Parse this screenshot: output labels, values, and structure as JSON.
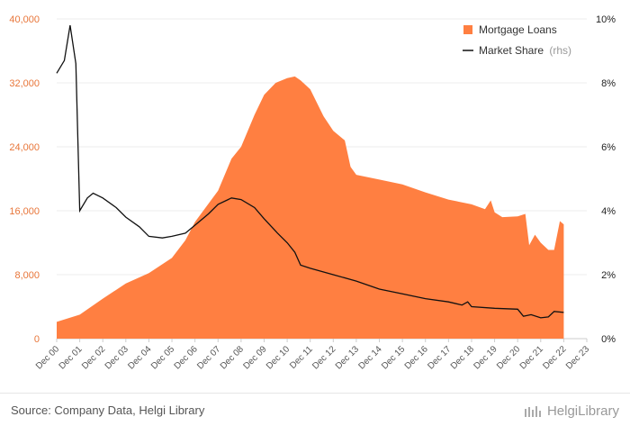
{
  "chart_data": {
    "type": "area",
    "title": "",
    "legend_position": "top-right",
    "x_tick_labels": [
      "Dec 00",
      "Dec 01",
      "Dec 02",
      "Dec 03",
      "Dec 04",
      "Dec 05",
      "Dec 06",
      "Dec 07",
      "Dec 08",
      "Dec 09",
      "Dec 10",
      "Dec 11",
      "Dec 12",
      "Dec 13",
      "Dec 14",
      "Dec 15",
      "Dec 16",
      "Dec 17",
      "Dec 18",
      "Dec 19",
      "Dec 20",
      "Dec 21",
      "Dec 22",
      "Dec 23"
    ],
    "y_left": {
      "ticks": [
        0,
        8000,
        16000,
        24000,
        32000,
        40000
      ],
      "tick_labels": [
        "0",
        "8,000",
        "16,000",
        "24,000",
        "32,000",
        "40,000"
      ],
      "range": [
        0,
        40000
      ]
    },
    "y_right": {
      "ticks": [
        0,
        2,
        4,
        6,
        8,
        10
      ],
      "tick_labels": [
        "0%",
        "2%",
        "4%",
        "6%",
        "8%",
        "10%"
      ],
      "range": [
        0,
        10
      ],
      "unit": "%"
    },
    "series": [
      {
        "name": "Mortgage Loans",
        "axis": "left",
        "kind": "area",
        "color": "#ff7f41",
        "points": [
          [
            2000.917,
            2100
          ],
          [
            2001.917,
            3000
          ],
          [
            2002.917,
            5000
          ],
          [
            2003.917,
            6900
          ],
          [
            2004.917,
            8200
          ],
          [
            2005.917,
            10100
          ],
          [
            2006.5,
            12300
          ],
          [
            2006.917,
            14600
          ],
          [
            2007.917,
            18500
          ],
          [
            2008.5,
            22500
          ],
          [
            2008.917,
            24000
          ],
          [
            2009.5,
            28000
          ],
          [
            2009.917,
            30500
          ],
          [
            2010.417,
            32000
          ],
          [
            2010.917,
            32600
          ],
          [
            2011.25,
            32800
          ],
          [
            2011.5,
            32300
          ],
          [
            2011.917,
            31200
          ],
          [
            2012.5,
            27800
          ],
          [
            2012.917,
            26000
          ],
          [
            2013.417,
            24800
          ],
          [
            2013.667,
            21500
          ],
          [
            2013.917,
            20500
          ],
          [
            2014.917,
            19900
          ],
          [
            2015.917,
            19300
          ],
          [
            2016.917,
            18300
          ],
          [
            2017.917,
            17400
          ],
          [
            2018.917,
            16800
          ],
          [
            2019.5,
            16200
          ],
          [
            2019.75,
            17300
          ],
          [
            2019.917,
            15800
          ],
          [
            2020.25,
            15200
          ],
          [
            2020.917,
            15300
          ],
          [
            2021.25,
            15600
          ],
          [
            2021.417,
            11700
          ],
          [
            2021.667,
            13000
          ],
          [
            2021.917,
            12000
          ],
          [
            2022.25,
            11100
          ],
          [
            2022.5,
            11100
          ],
          [
            2022.75,
            14700
          ],
          [
            2022.917,
            14300
          ]
        ]
      },
      {
        "name": "Market Share",
        "suffix": "(rhs)",
        "axis": "right",
        "kind": "line",
        "color": "#111111",
        "points": [
          [
            2000.917,
            8.3
          ],
          [
            2001.25,
            8.7
          ],
          [
            2001.5,
            9.8
          ],
          [
            2001.75,
            8.6
          ],
          [
            2001.917,
            4.0
          ],
          [
            2002.25,
            4.4
          ],
          [
            2002.5,
            4.55
          ],
          [
            2002.917,
            4.4
          ],
          [
            2003.5,
            4.1
          ],
          [
            2003.917,
            3.8
          ],
          [
            2004.5,
            3.5
          ],
          [
            2004.917,
            3.2
          ],
          [
            2005.5,
            3.15
          ],
          [
            2005.917,
            3.2
          ],
          [
            2006.5,
            3.3
          ],
          [
            2006.917,
            3.55
          ],
          [
            2007.5,
            3.9
          ],
          [
            2007.917,
            4.2
          ],
          [
            2008.5,
            4.4
          ],
          [
            2008.917,
            4.35
          ],
          [
            2009.5,
            4.1
          ],
          [
            2009.917,
            3.75
          ],
          [
            2010.5,
            3.3
          ],
          [
            2010.917,
            3.0
          ],
          [
            2011.25,
            2.7
          ],
          [
            2011.5,
            2.3
          ],
          [
            2011.917,
            2.2
          ],
          [
            2012.917,
            2.0
          ],
          [
            2013.917,
            1.8
          ],
          [
            2014.917,
            1.55
          ],
          [
            2015.917,
            1.4
          ],
          [
            2016.917,
            1.25
          ],
          [
            2017.917,
            1.15
          ],
          [
            2018.5,
            1.05
          ],
          [
            2018.75,
            1.15
          ],
          [
            2018.917,
            1.0
          ],
          [
            2019.917,
            0.95
          ],
          [
            2020.917,
            0.92
          ],
          [
            2021.167,
            0.7
          ],
          [
            2021.5,
            0.75
          ],
          [
            2021.917,
            0.65
          ],
          [
            2022.25,
            0.68
          ],
          [
            2022.5,
            0.85
          ],
          [
            2022.917,
            0.82
          ]
        ]
      }
    ]
  },
  "footer": {
    "source": "Source: Company Data, Helgi Library",
    "brand": "HelgiLibrary"
  }
}
